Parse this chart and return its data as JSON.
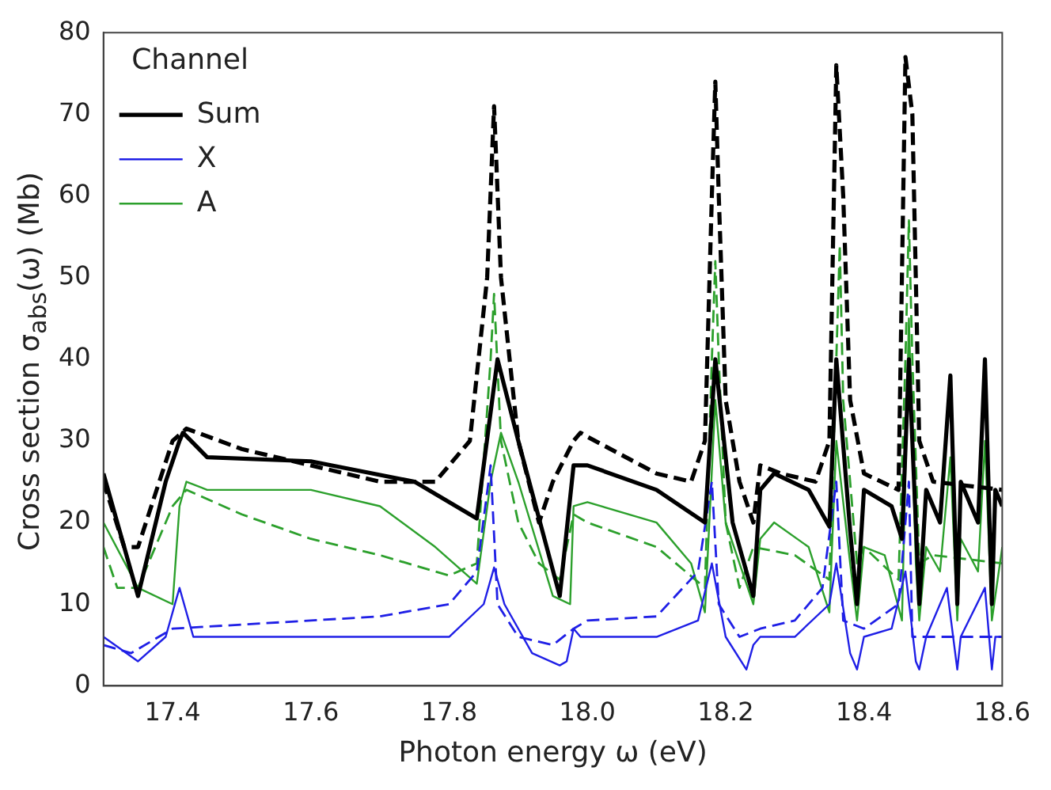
{
  "chart_data": {
    "type": "line",
    "xlabel": "Photon energy ω (eV)",
    "ylabel": "Cross section σ$_{abs}$(ω) (Mb)",
    "legend_title": "Channel",
    "legend": "top left",
    "grid": false,
    "marker": "none",
    "xlim": [
      17.3,
      18.6
    ],
    "xticks": [
      {
        "value": 17.4,
        "label": "17.4"
      },
      {
        "value": 17.6,
        "label": "17.6"
      },
      {
        "value": 17.8,
        "label": "17.8"
      },
      {
        "value": 18,
        "label": "18.0"
      },
      {
        "value": 18.2,
        "label": "18.2"
      },
      {
        "value": 18.4,
        "label": "18.4"
      },
      {
        "value": 18.6,
        "label": "18.6"
      }
    ],
    "ylim": [
      0,
      80
    ],
    "yticks": [
      0,
      10,
      20,
      30,
      40,
      50,
      60,
      70,
      80
    ],
    "series": [
      {
        "name": "Sum",
        "color": "#000000",
        "line_style": "solid",
        "x": [
          17.3,
          17.35,
          17.39,
          17.41,
          17.415,
          17.45,
          17.6,
          17.75,
          17.84,
          17.87,
          17.9,
          17.96,
          17.98,
          18.0,
          18.1,
          18.17,
          18.185,
          18.21,
          18.24,
          18.25,
          18.27,
          18.32,
          18.35,
          18.36,
          18.38,
          18.39,
          18.4,
          18.44,
          18.455,
          18.465,
          18.475,
          18.48,
          18.49,
          18.51,
          18.525,
          18.535,
          18.54,
          18.565,
          18.575,
          18.585,
          18.59,
          18.6
        ],
        "values": [
          26,
          11,
          25,
          30,
          31,
          28,
          27.5,
          25,
          20.5,
          40,
          30,
          11,
          27,
          27,
          24,
          20,
          40,
          20,
          11,
          24,
          26,
          24,
          19.5,
          40,
          19,
          10,
          24,
          22,
          18,
          40,
          20,
          10,
          24,
          20,
          38,
          10,
          25,
          20,
          40,
          10,
          24,
          22
        ]
      },
      {
        "color": "#000000",
        "line_style": "dashed",
        "x": [
          17.3,
          17.33,
          17.35,
          17.4,
          17.42,
          17.5,
          17.6,
          17.7,
          17.78,
          17.83,
          17.855,
          17.865,
          17.875,
          17.9,
          17.93,
          17.95,
          17.98,
          17.99,
          18.0,
          18.1,
          18.15,
          18.17,
          18.18,
          18.185,
          18.19,
          18.2,
          18.22,
          18.24,
          18.25,
          18.28,
          18.33,
          18.35,
          18.36,
          18.37,
          18.38,
          18.4,
          18.45,
          18.46,
          18.47,
          18.48,
          18.5,
          18.6
        ],
        "values": [
          25,
          17,
          17,
          30,
          31.5,
          29,
          27,
          25,
          25,
          30,
          50,
          71,
          50,
          30,
          20,
          25,
          30,
          31,
          30.5,
          26,
          25,
          30,
          60,
          74,
          60,
          35,
          25,
          20,
          27,
          26,
          25,
          30,
          76,
          60,
          35,
          26,
          24,
          77,
          70,
          30,
          25,
          24
        ]
      },
      {
        "name": "X",
        "color": "#1f1fe6",
        "line_style": "solid",
        "x": [
          17.3,
          17.35,
          17.39,
          17.41,
          17.43,
          17.6,
          17.8,
          17.85,
          17.865,
          17.88,
          17.92,
          17.96,
          17.97,
          17.98,
          17.99,
          18.1,
          18.16,
          18.18,
          18.2,
          18.23,
          18.24,
          18.25,
          18.3,
          18.35,
          18.36,
          18.38,
          18.39,
          18.4,
          18.44,
          18.46,
          18.475,
          18.48,
          18.49,
          18.52,
          18.535,
          18.54,
          18.575,
          18.585,
          18.59,
          18.6
        ],
        "values": [
          6,
          3,
          6,
          12,
          6,
          6,
          6,
          10,
          14.5,
          10,
          4,
          2.5,
          3,
          7,
          6,
          6,
          8,
          15,
          6,
          2,
          5,
          6,
          6,
          10,
          15,
          4,
          2,
          6,
          7,
          14,
          3,
          2,
          6,
          12,
          2,
          6,
          12,
          2,
          6,
          6
        ]
      },
      {
        "color": "#1f1fe6",
        "line_style": "dashed",
        "x": [
          17.3,
          17.34,
          17.4,
          17.5,
          17.7,
          17.8,
          17.84,
          17.86,
          17.87,
          17.9,
          17.95,
          17.98,
          18.0,
          18.1,
          18.16,
          18.18,
          18.19,
          18.22,
          18.25,
          18.3,
          18.34,
          18.36,
          18.37,
          18.4,
          18.45,
          18.465,
          18.47,
          18.6
        ],
        "values": [
          5,
          4,
          7,
          7.5,
          8.5,
          10,
          14,
          27,
          10,
          6,
          5,
          7,
          8,
          8.5,
          14,
          25,
          10,
          6,
          7,
          8,
          12,
          25,
          8,
          7,
          10,
          25,
          6,
          6
        ]
      },
      {
        "name": "A",
        "color": "#2ca02c",
        "line_style": "solid",
        "x": [
          17.3,
          17.35,
          17.4,
          17.41,
          17.42,
          17.45,
          17.6,
          17.7,
          17.78,
          17.84,
          17.86,
          17.875,
          17.9,
          17.95,
          17.975,
          17.98,
          18.0,
          18.1,
          18.15,
          18.17,
          18.185,
          18.2,
          18.24,
          18.25,
          18.27,
          18.32,
          18.35,
          18.36,
          18.38,
          18.39,
          18.4,
          18.43,
          18.455,
          18.465,
          18.475,
          18.48,
          18.49,
          18.51,
          18.525,
          18.535,
          18.54,
          18.565,
          18.575,
          18.585,
          18.6
        ],
        "values": [
          20,
          12,
          10,
          22,
          25,
          24,
          24,
          22,
          17,
          12.5,
          25,
          31,
          25,
          11,
          10,
          22,
          22.5,
          20,
          15,
          9,
          35,
          20,
          10,
          18,
          20,
          17,
          9,
          30,
          15,
          8,
          17,
          16,
          8,
          45,
          15,
          8,
          17,
          14,
          28,
          8,
          18,
          14,
          30,
          8,
          17
        ]
      },
      {
        "color": "#2ca02c",
        "line_style": "dashed",
        "x": [
          17.3,
          17.32,
          17.35,
          17.4,
          17.42,
          17.5,
          17.6,
          17.7,
          17.8,
          17.84,
          17.86,
          17.865,
          17.875,
          17.9,
          17.93,
          17.96,
          17.98,
          18.0,
          18.1,
          18.17,
          18.18,
          18.185,
          18.19,
          18.2,
          18.22,
          18.24,
          18.3,
          18.35,
          18.36,
          18.365,
          18.37,
          18.39,
          18.4,
          18.45,
          18.46,
          18.465,
          18.47,
          18.48,
          18.5,
          18.6
        ],
        "values": [
          17,
          12,
          12,
          22,
          24,
          21,
          18,
          16,
          13.5,
          15,
          40,
          48,
          30,
          20,
          15,
          13,
          21,
          20,
          17,
          12,
          40,
          52,
          40,
          20,
          12,
          17,
          16,
          13,
          40,
          54,
          35,
          15,
          17,
          13,
          40,
          57,
          40,
          15,
          16,
          15
        ]
      }
    ]
  }
}
